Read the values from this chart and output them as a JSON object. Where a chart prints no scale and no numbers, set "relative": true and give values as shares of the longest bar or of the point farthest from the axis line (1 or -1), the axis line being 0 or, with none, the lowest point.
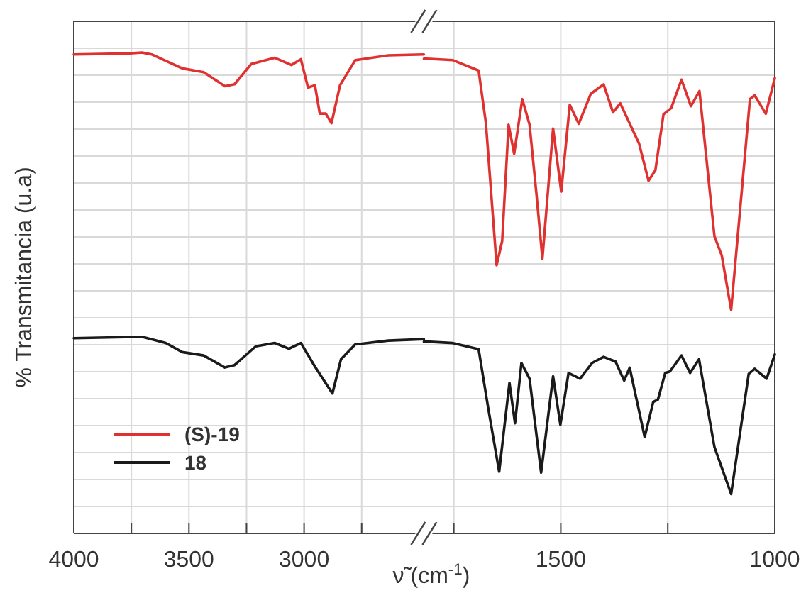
{
  "chart_data": [
    {
      "type": "line",
      "relative": true,
      "xlabel": "ν̃ (cm$^{-1}$)",
      "ylabel": "% Transmitancia (u.a)",
      "xlim": [
        4000,
        2480
      ],
      "xticks": [
        4000,
        {
          "value": 3750,
          "label": null
        },
        3500,
        {
          "value": 3250,
          "label": null
        },
        3000,
        {
          "value": 2750,
          "label": null
        }
      ],
      "grid": true,
      "legend": "bottom left",
      "series": [
        {
          "name": "(S)-19",
          "color": "#e03131",
          "x": [
            4000,
            3765,
            3704,
            3662,
            3529,
            3436,
            3344,
            3302,
            3230,
            3128,
            3055,
            3014,
            2983,
            2953,
            2932,
            2906,
            2881,
            2844,
            2778,
            2634,
            2480
          ],
          "values": [
            0.996,
            0.998,
            1.0,
            0.996,
            0.967,
            0.959,
            0.93,
            0.934,
            0.976,
            0.989,
            0.974,
            0.986,
            0.927,
            0.932,
            0.873,
            0.873,
            0.853,
            0.932,
            0.984,
            0.994,
            0.996
          ]
        },
        {
          "name": "18",
          "color": "#1a1a1a",
          "x": [
            4000,
            3704,
            3601,
            3529,
            3436,
            3344,
            3302,
            3210,
            3128,
            3066,
            3014,
            2953,
            2877,
            2840,
            2778,
            2634,
            2480
          ],
          "values": [
            0.406,
            0.409,
            0.396,
            0.377,
            0.37,
            0.345,
            0.35,
            0.389,
            0.396,
            0.384,
            0.396,
            0.347,
            0.291,
            0.362,
            0.393,
            0.401,
            0.404
          ]
        }
      ]
    },
    {
      "type": "line",
      "relative": true,
      "xlim": [
        1820,
        1000
      ],
      "xticks": [
        {
          "value": 1750,
          "label": null
        },
        1500,
        {
          "value": 1250,
          "label": null
        },
        1000
      ],
      "grid": true,
      "series": [
        {
          "color": "#e03131",
          "x": [
            1820,
            1813,
            1752,
            1692,
            1675,
            1650,
            1637,
            1622,
            1609,
            1590,
            1573,
            1557,
            1543,
            1518,
            1499,
            1479,
            1458,
            1430,
            1400,
            1378,
            1361,
            1317,
            1295,
            1279,
            1260,
            1242,
            1218,
            1196,
            1176,
            1141,
            1124,
            1102,
            1058,
            1047,
            1021,
            1000
          ],
          "values": [
            1.0,
            1.0,
            0.997,
            0.975,
            0.864,
            0.565,
            0.616,
            0.861,
            0.8,
            0.915,
            0.861,
            0.716,
            0.579,
            0.853,
            0.72,
            0.903,
            0.863,
            0.926,
            0.946,
            0.887,
            0.906,
            0.821,
            0.743,
            0.765,
            0.883,
            0.896,
            0.956,
            0.9,
            0.932,
            0.626,
            0.586,
            0.471,
            0.915,
            0.923,
            0.884,
            0.959
          ]
        },
        {
          "color": "#1a1a1a",
          "x": [
            1820,
            1813,
            1752,
            1692,
            1670,
            1644,
            1620,
            1607,
            1592,
            1573,
            1546,
            1518,
            1501,
            1482,
            1455,
            1427,
            1400,
            1372,
            1352,
            1339,
            1304,
            1284,
            1273,
            1256,
            1245,
            1218,
            1198,
            1177,
            1141,
            1102,
            1061,
            1047,
            1019,
            1000
          ],
          "values": [
            0.404,
            0.404,
            0.401,
            0.388,
            0.266,
            0.13,
            0.317,
            0.232,
            0.359,
            0.326,
            0.128,
            0.331,
            0.229,
            0.338,
            0.326,
            0.359,
            0.372,
            0.362,
            0.322,
            0.349,
            0.203,
            0.277,
            0.282,
            0.338,
            0.341,
            0.375,
            0.338,
            0.367,
            0.182,
            0.083,
            0.336,
            0.347,
            0.326,
            0.377
          ]
        }
      ]
    }
  ]
}
